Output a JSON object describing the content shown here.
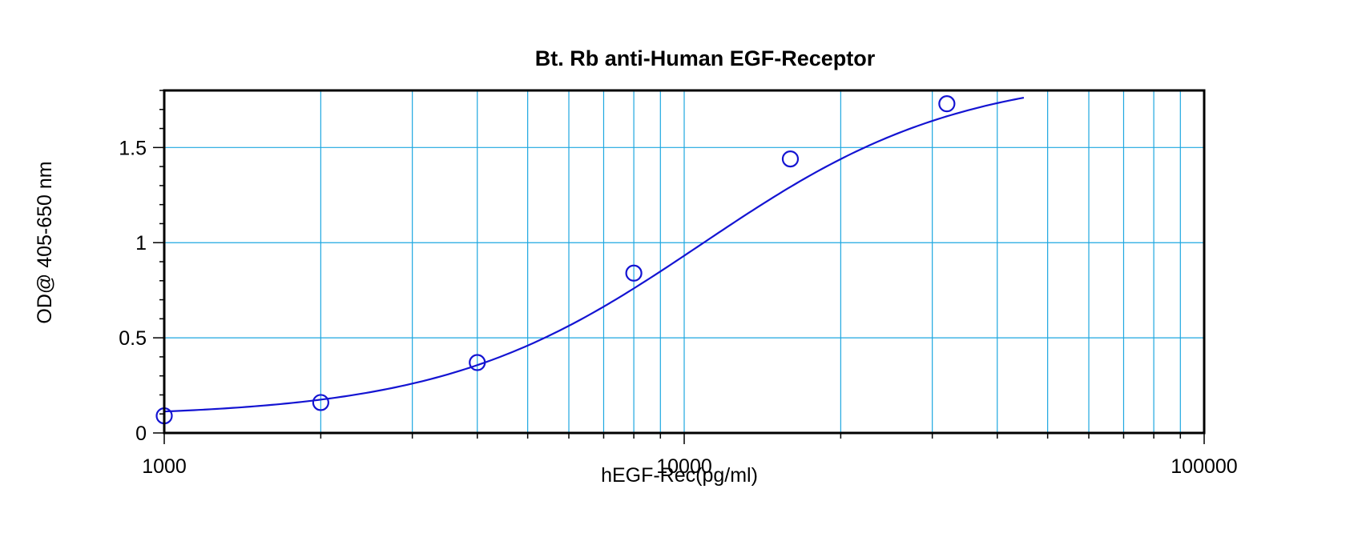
{
  "chart_data": {
    "type": "scatter",
    "title": "Bt. Rb anti-Human EGF-Receptor",
    "xlabel": "hEGF-Rec(pg/ml)",
    "ylabel": "OD@ 405-650 nm",
    "x_scale": "log",
    "y_scale": "linear",
    "xlim": [
      1000,
      100000
    ],
    "ylim": [
      0,
      1.8
    ],
    "x_ticks": [
      1000,
      10000,
      100000
    ],
    "x_tick_labels": [
      "1000",
      "10000",
      "100000"
    ],
    "y_ticks": [
      0,
      0.5,
      1,
      1.5
    ],
    "y_tick_labels": [
      "0",
      "0.5",
      "1",
      "1.5"
    ],
    "grid": true,
    "colors": {
      "series": "#1414d2",
      "grid": "#1ea7e0",
      "axis": "#000000"
    },
    "series": [
      {
        "marker": "open-circle",
        "x": [
          1000,
          2000,
          4000,
          8000,
          16000,
          32000
        ],
        "y": [
          0.09,
          0.16,
          0.37,
          0.84,
          1.44,
          1.73
        ]
      }
    ],
    "fit_curve": {
      "model": "4PL",
      "bottom": 0.085,
      "top": 1.9,
      "ec50": 10800,
      "hill": 1.75,
      "x_range": [
        1000,
        45000
      ]
    }
  }
}
